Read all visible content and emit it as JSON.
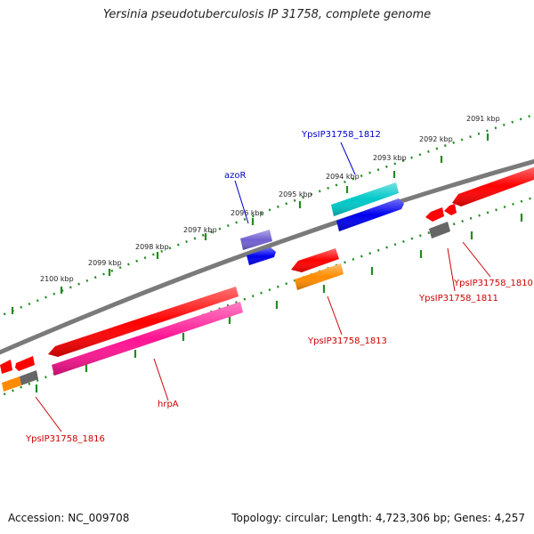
{
  "title": "Yersinia pseudotuberculosis IP 31758, complete genome",
  "accession": "Accession: NC_009708",
  "genome_info": "Topology: circular; Length: 4,723,306 bp; Genes: 4,257",
  "colors": {
    "backbone": "#777777",
    "tick": "#228B22",
    "red": "#ff0000",
    "pink": "#ff1493",
    "orange": "#ff8c00",
    "cyan": "#00c8c8",
    "blue": "#0000ff",
    "slate": "#7060d0",
    "gray": "#666666",
    "label_red": "#cc0000",
    "label_blue": "#0000cc"
  },
  "scale": {
    "ticks": [
      {
        "label": "2100 kbp"
      },
      {
        "label": "2099 kbp"
      },
      {
        "label": "2098 kbp"
      },
      {
        "label": "2097 kbp"
      },
      {
        "label": "2096 kbp"
      },
      {
        "label": "2095 kbp"
      },
      {
        "label": "2094 kbp"
      },
      {
        "label": "2093 kbp"
      },
      {
        "label": "2092 kbp"
      },
      {
        "label": "2091 kbp"
      }
    ]
  },
  "genes": [
    {
      "name": "YpsIP31758_1816",
      "color": "label_red"
    },
    {
      "name": "hrpA",
      "color": "label_red"
    },
    {
      "name": "azoR",
      "color": "label_blue"
    },
    {
      "name": "YpsIP31758_1812",
      "color": "label_blue"
    },
    {
      "name": "YpsIP31758_1813",
      "color": "label_red"
    },
    {
      "name": "YpsIP31758_1811",
      "color": "label_red"
    },
    {
      "name": "YpsIP31758_1810",
      "color": "label_red"
    }
  ]
}
